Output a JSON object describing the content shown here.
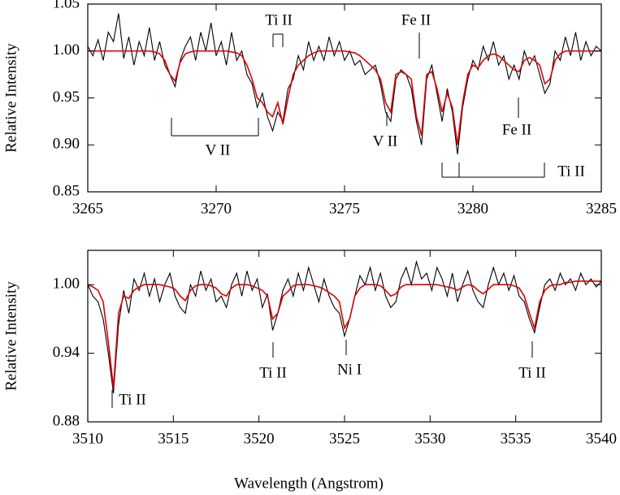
{
  "chart_data": [
    {
      "type": "line",
      "ylabel": "Relative Intensity",
      "x": [
        3265,
        3265.2,
        3265.4,
        3265.6,
        3265.8,
        3266,
        3266.2,
        3266.4,
        3266.6,
        3266.8,
        3267,
        3267.2,
        3267.4,
        3267.6,
        3267.8,
        3268,
        3268.2,
        3268.4,
        3268.6,
        3268.8,
        3269,
        3269.2,
        3269.4,
        3269.6,
        3269.8,
        3270,
        3270.2,
        3270.4,
        3270.6,
        3270.8,
        3271,
        3271.2,
        3271.4,
        3271.6,
        3271.8,
        3272,
        3272.2,
        3272.4,
        3272.6,
        3272.8,
        3273,
        3273.2,
        3273.4,
        3273.6,
        3273.8,
        3274,
        3274.2,
        3274.4,
        3274.6,
        3274.8,
        3275,
        3275.2,
        3275.4,
        3275.6,
        3275.8,
        3276,
        3276.2,
        3276.4,
        3276.6,
        3276.8,
        3277,
        3277.2,
        3277.4,
        3277.6,
        3277.8,
        3278,
        3278.2,
        3278.4,
        3278.6,
        3278.8,
        3279,
        3279.2,
        3279.4,
        3279.6,
        3279.8,
        3280,
        3280.2,
        3280.4,
        3280.6,
        3280.8,
        3281,
        3281.2,
        3281.4,
        3281.6,
        3281.8,
        3282,
        3282.2,
        3282.4,
        3282.6,
        3282.8,
        3283,
        3283.2,
        3283.4,
        3283.6,
        3283.8,
        3284,
        3284.2,
        3284.4,
        3284.6,
        3284.8,
        3285
      ],
      "series": [
        {
          "color": "#000000",
          "values": [
            1.005,
            0.995,
            1.012,
            0.99,
            1.02,
            1.01,
            1.04,
            0.992,
            1.015,
            0.985,
            1.01,
            0.995,
            1.025,
            0.99,
            1.01,
            0.985,
            0.975,
            0.962,
            0.99,
            1.005,
            1.015,
            0.99,
            1.02,
            1.0,
            1.03,
            0.995,
            1.01,
            0.985,
            1.02,
            0.99,
            1.0,
            0.975,
            0.965,
            0.94,
            0.955,
            0.93,
            0.915,
            0.935,
            0.925,
            0.96,
            0.97,
            0.995,
            0.98,
            1.01,
            0.99,
            1.005,
            0.99,
            1.015,
            0.995,
            1.01,
            0.99,
            1.0,
            0.985,
            0.99,
            0.975,
            0.98,
            0.985,
            0.965,
            0.935,
            0.925,
            0.97,
            0.98,
            0.975,
            0.96,
            0.925,
            0.9,
            0.97,
            0.985,
            0.955,
            0.925,
            0.96,
            0.935,
            0.89,
            0.94,
            0.97,
            0.99,
            0.98,
            1.005,
            0.99,
            1.01,
            0.985,
            0.995,
            0.97,
            0.985,
            0.97,
            1.0,
            0.985,
            0.995,
            0.975,
            0.955,
            0.965,
            1.0,
            0.99,
            1.015,
            0.995,
            1.02,
            0.99,
            1.01,
            0.995,
            1.005,
            1.0
          ]
        },
        {
          "color": "#dd0000",
          "values": [
            1,
            1,
            1,
            1,
            1,
            1,
            1,
            1,
            1,
            1,
            1,
            1,
            1,
            0.999,
            0.997,
            0.99,
            0.975,
            0.968,
            0.988,
            0.997,
            0.999,
            1,
            1,
            1,
            1,
            1,
            1,
            1,
            0.999,
            0.998,
            0.995,
            0.985,
            0.97,
            0.95,
            0.945,
            0.935,
            0.93,
            0.945,
            0.922,
            0.95,
            0.975,
            0.985,
            0.99,
            0.995,
            0.998,
            1,
            1,
            1,
            1,
            1,
            1,
            0.999,
            0.998,
            0.995,
            0.99,
            0.985,
            0.98,
            0.97,
            0.945,
            0.935,
            0.975,
            0.978,
            0.975,
            0.97,
            0.93,
            0.91,
            0.975,
            0.978,
            0.96,
            0.935,
            0.955,
            0.94,
            0.9,
            0.945,
            0.975,
            0.985,
            0.982,
            0.99,
            0.995,
            0.997,
            0.995,
            0.99,
            0.985,
            0.98,
            0.978,
            0.99,
            0.993,
            0.99,
            0.985,
            0.965,
            0.97,
            0.99,
            0.997,
            1,
            1,
            1,
            1,
            1,
            1,
            1,
            1
          ]
        }
      ],
      "xlim": [
        3265,
        3285
      ],
      "xticks": [
        3265,
        3270,
        3275,
        3280,
        3285
      ],
      "ylim": [
        0.85,
        1.05
      ],
      "yticks": [
        0.85,
        {
          "value": 0.9,
          "label": "0.90"
        },
        0.95,
        {
          "value": 1,
          "label": "1.00"
        },
        1.05
      ],
      "annotations": [
        "Ti II",
        "Fe II",
        "V II",
        "V II",
        "Fe II",
        "Ti II"
      ]
    },
    {
      "type": "line",
      "ylabel": "Relative Intensity",
      "xlabel": "Wavelength (Angstrom)",
      "x": [
        3510,
        3510.3,
        3510.6,
        3510.9,
        3511.2,
        3511.5,
        3511.8,
        3512.1,
        3512.4,
        3512.7,
        3513,
        3513.3,
        3513.6,
        3513.9,
        3514.2,
        3514.5,
        3514.8,
        3515.1,
        3515.4,
        3515.7,
        3516,
        3516.3,
        3516.6,
        3516.9,
        3517.2,
        3517.5,
        3517.8,
        3518.1,
        3518.4,
        3518.7,
        3519,
        3519.3,
        3519.6,
        3519.9,
        3520.2,
        3520.5,
        3520.8,
        3521.1,
        3521.4,
        3521.7,
        3522,
        3522.3,
        3522.6,
        3522.9,
        3523.2,
        3523.5,
        3523.8,
        3524.1,
        3524.4,
        3524.7,
        3525,
        3525.3,
        3525.6,
        3525.9,
        3526.2,
        3526.5,
        3526.8,
        3527.1,
        3527.4,
        3527.7,
        3528,
        3528.3,
        3528.6,
        3528.9,
        3529.2,
        3529.5,
        3529.8,
        3530.1,
        3530.4,
        3530.7,
        3531,
        3531.3,
        3531.6,
        3531.9,
        3532.2,
        3532.5,
        3532.8,
        3533.1,
        3533.4,
        3533.7,
        3534,
        3534.3,
        3534.6,
        3534.9,
        3535.2,
        3535.5,
        3535.8,
        3536.1,
        3536.4,
        3536.7,
        3537,
        3537.3,
        3537.6,
        3537.9,
        3538.2,
        3538.5,
        3538.8,
        3539.1,
        3539.4,
        3539.7,
        3540
      ],
      "series": [
        {
          "color": "#000000",
          "values": [
            1.0,
            0.99,
            0.985,
            0.97,
            0.94,
            0.905,
            0.965,
            0.995,
            0.975,
            1.005,
            0.995,
            1.01,
            0.99,
            1.005,
            0.985,
            1.0,
            1.01,
            0.99,
            0.98,
            0.975,
            1.0,
            0.99,
            1.012,
            0.995,
            1.005,
            0.985,
            0.99,
            0.98,
            1.0,
            1.01,
            0.99,
            1.012,
            0.995,
            1.005,
            0.98,
            0.992,
            0.96,
            0.975,
            0.995,
            1.005,
            0.99,
            1.01,
            0.995,
            1.015,
            1.0,
            0.985,
            1.005,
            0.99,
            0.98,
            0.975,
            0.955,
            0.97,
            0.99,
            1.008,
            1.0,
            1.015,
            0.995,
            1.01,
            0.99,
            0.98,
            0.985,
            1.005,
            1.015,
            1.0,
            1.02,
            1.005,
            1.01,
            0.995,
            1.015,
            1.005,
            0.99,
            1.01,
            0.985,
            1.0,
            1.012,
            0.995,
            0.985,
            0.98,
            1.0,
            1.015,
            1.0,
            1.01,
            0.995,
            1.008,
            0.99,
            0.985,
            0.97,
            0.958,
            0.98,
            1.0,
            1.005,
            0.995,
            1.01,
            1.0,
            1.005,
            0.995,
            1.01,
            1.0,
            1.005,
            0.998,
            1.003
          ]
        },
        {
          "color": "#dd0000",
          "values": [
            1,
            0.998,
            0.995,
            0.985,
            0.95,
            0.91,
            0.975,
            0.99,
            0.988,
            0.995,
            0.998,
            1,
            1,
            1,
            1,
            0.999,
            0.998,
            0.996,
            0.99,
            0.986,
            0.995,
            0.999,
            1,
            1,
            0.999,
            0.997,
            0.992,
            0.99,
            0.997,
            1,
            1,
            1,
            0.999,
            0.997,
            0.995,
            0.99,
            0.97,
            0.975,
            0.99,
            0.994,
            0.999,
            1,
            1,
            1,
            0.999,
            0.998,
            0.996,
            0.993,
            0.99,
            0.985,
            0.962,
            0.97,
            0.99,
            0.997,
            1,
            1,
            1,
            0.999,
            0.995,
            0.99,
            0.992,
            0.998,
            1,
            1,
            1,
            1,
            1,
            1,
            1,
            0.999,
            0.998,
            0.997,
            0.995,
            0.998,
            1,
            0.999,
            0.995,
            0.992,
            0.996,
            1,
            1,
            1,
            1,
            0.999,
            0.997,
            0.99,
            0.975,
            0.962,
            0.985,
            0.995,
            0.999,
            1,
            1,
            1.002,
            1.002,
            1.003,
            1.003,
            1.003,
            1.003,
            1.003,
            1.003
          ]
        }
      ],
      "xlim": [
        3510,
        3540
      ],
      "xticks": [
        3510,
        3515,
        3520,
        3525,
        3530,
        3535,
        3540
      ],
      "ylim": [
        0.88,
        1.03
      ],
      "yticks": [
        0.88,
        0.94,
        {
          "value": 1,
          "label": "1.00"
        }
      ],
      "annotations": [
        "Ti II",
        "Ti II",
        "Ni I",
        "Ti II"
      ]
    }
  ]
}
